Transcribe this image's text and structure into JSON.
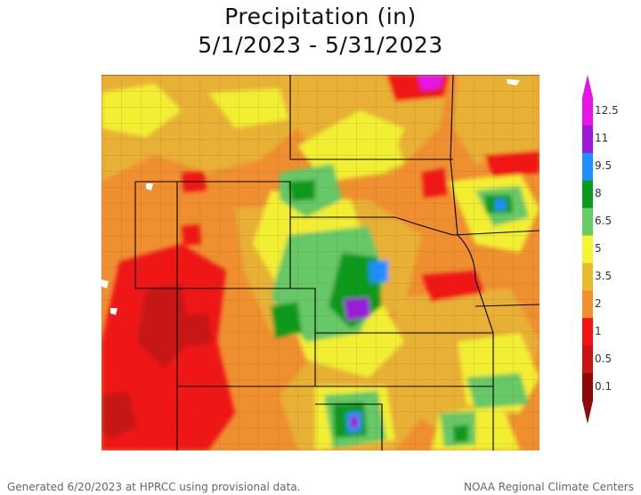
{
  "title": {
    "line1": "Precipitation (in)",
    "line2": "5/1/2023 - 5/31/2023"
  },
  "legend": {
    "labels": [
      "12.5",
      "11",
      "9.5",
      "8",
      "6.5",
      "5",
      "3.5",
      "2",
      "1",
      "0.5",
      "0.1"
    ],
    "colors": [
      "#e614e6",
      "#9a1ad6",
      "#1e90ff",
      "#0a9a1e",
      "#66cc66",
      "#f5f534",
      "#e6bb2e",
      "#f0902e",
      "#f01414",
      "#c81414",
      "#8c0a0a"
    ]
  },
  "map": {
    "colors": {
      "orange": "#ef8f2f",
      "light_orange": "#e8b034",
      "yellow": "#f2ee32",
      "light_green": "#66c866",
      "green": "#0a9a1e",
      "blue": "#1e90ff",
      "purple": "#9a1ad6",
      "magenta": "#e614e6",
      "red": "#f01414",
      "dark_red": "#c81414",
      "boundary": "#000000",
      "county": "#6b4a2a"
    }
  },
  "footer": {
    "left": "Generated 6/20/2023 at HPRCC using provisional data.",
    "right": "NOAA Regional Climate Centers"
  }
}
